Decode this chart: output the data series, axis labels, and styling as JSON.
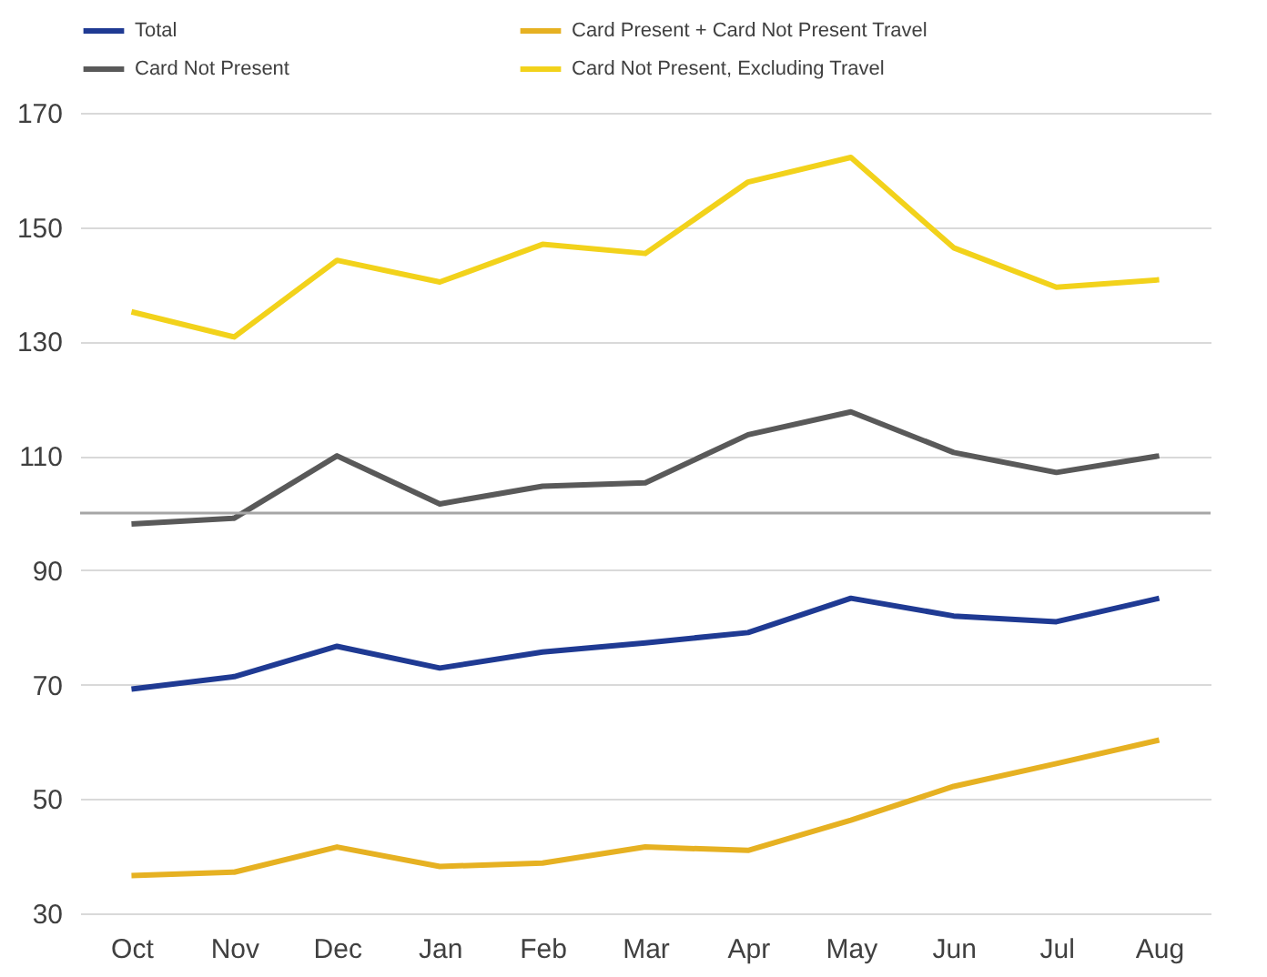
{
  "chart_data": {
    "type": "line",
    "categories": [
      "Oct",
      "Nov",
      "Dec",
      "Jan",
      "Feb",
      "Mar",
      "Apr",
      "May",
      "Jun",
      "Jul",
      "Aug"
    ],
    "series": [
      {
        "name": "Total",
        "color": "#1f3a93",
        "values": [
          69.2,
          71.4,
          76.7,
          72.9,
          75.7,
          77.3,
          79.1,
          85.1,
          82,
          81,
          85.1
        ]
      },
      {
        "name": "Card Present + Card Not Present Travel",
        "color": "#e6b122",
        "values": [
          36.6,
          37.2,
          41.6,
          38.2,
          38.8,
          41.6,
          41,
          46.3,
          52.2,
          56.2,
          60.3
        ]
      },
      {
        "name": "Card Not Present",
        "color": "#595959",
        "values": [
          98.1,
          99.1,
          110,
          101.6,
          104.7,
          105.3,
          113.7,
          117.7,
          110.6,
          107.1,
          110
        ]
      },
      {
        "name": "Card Not Present, Excluding Travel",
        "color": "#f2d21b",
        "values": [
          135.2,
          130.8,
          144.2,
          140.4,
          147,
          145.4,
          157.9,
          162.2,
          146.4,
          139.5,
          140.8
        ]
      }
    ],
    "ylim": [
      30,
      170
    ],
    "yticks": [
      30,
      50,
      70,
      90,
      110,
      130,
      150,
      170
    ],
    "ref_lines": [
      {
        "axis": "y",
        "value": 100,
        "color": "#a6a6a6"
      }
    ],
    "grid": "y",
    "legend": "top",
    "marker": "none",
    "line_style": "solid"
  }
}
